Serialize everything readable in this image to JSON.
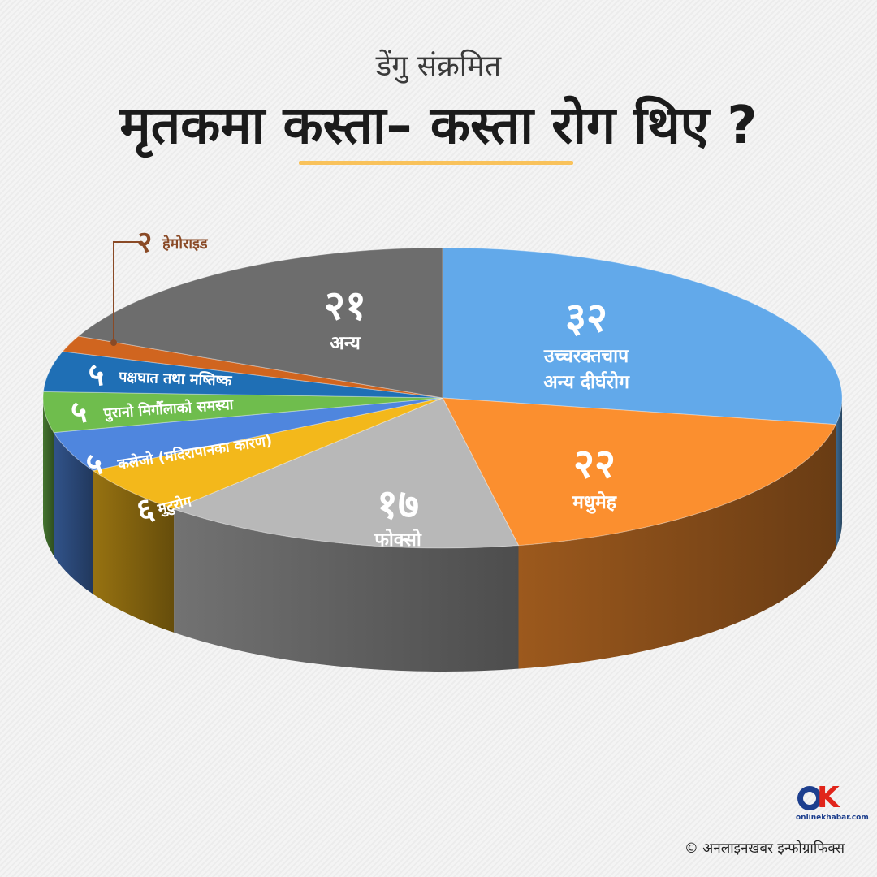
{
  "header": {
    "subtitle": "डेंगु संक्रमित",
    "title": "मृतकमा कस्ता– कस्ता रोग थिए ?"
  },
  "credit": "© अनलाइनखबर इन्फोग्राफिक्स",
  "logo": {
    "text": "onlinekhabar.com"
  },
  "chart_data": {
    "type": "pie",
    "title": "मृतकमा कस्ता– कस्ता रोग थिए ?",
    "slices": [
      {
        "label": "उच्चरक्तचाप अन्य दीर्घरोग",
        "value": 32,
        "value_label": "३२",
        "color": "#62a9ea"
      },
      {
        "label": "मधुमेह",
        "value": 22,
        "value_label": "२२",
        "color": "#fb8f2f"
      },
      {
        "label": "फोक्सो",
        "value": 17,
        "value_label": "१७",
        "color": "#b8b8b8"
      },
      {
        "label": "मुटुरोग",
        "value": 6,
        "value_label": "६",
        "color": "#f3b81b"
      },
      {
        "label": "कलेजो (मदिरापानका कारण)",
        "value": 5,
        "value_label": "५",
        "color": "#4f86de"
      },
      {
        "label": "पुरानो मिर्गौलाको समस्या",
        "value": 5,
        "value_label": "५",
        "color": "#6fbd4d"
      },
      {
        "label": "पक्षघात तथा मष्तिष्क",
        "value": 5,
        "value_label": "५",
        "color": "#1f6fb5"
      },
      {
        "label": "हेमोराइड",
        "value": 2,
        "value_label": "२",
        "color": "#d0651f"
      },
      {
        "label": "अन्य",
        "value": 21,
        "value_label": "२१",
        "color": "#6d6d6d"
      }
    ]
  }
}
